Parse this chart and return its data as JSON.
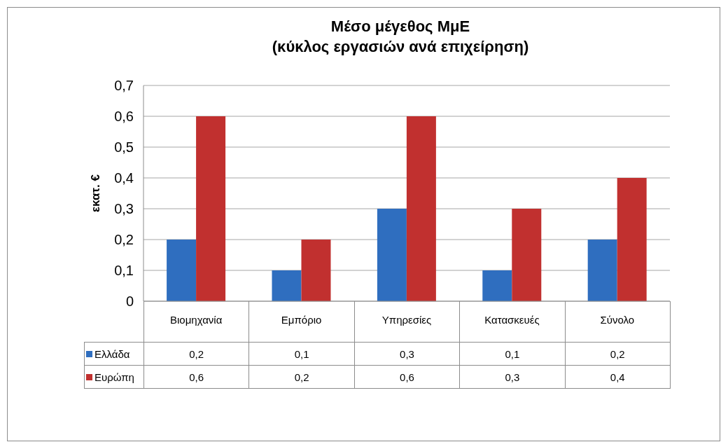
{
  "chart_data": {
    "type": "bar",
    "title": "Μέσο μέγεθος ΜμΕ",
    "subtitle": "(κύκλος εργασιών ανά επιχείρηση)",
    "ylabel": "εκατ. €",
    "categories": [
      "Βιομηχανία",
      "Εμπόριο",
      "Υπηρεσίες",
      "Κατασκευές",
      "Σύνολο"
    ],
    "series": [
      {
        "name": "Ελλάδα",
        "color": "#2f6ebf",
        "values": [
          0.2,
          0.1,
          0.3,
          0.1,
          0.2
        ],
        "value_labels": [
          "0,2",
          "0,1",
          "0,3",
          "0,1",
          "0,2"
        ]
      },
      {
        "name": "Ευρώπη",
        "color": "#c1302f",
        "values": [
          0.6,
          0.2,
          0.6,
          0.3,
          0.4
        ],
        "value_labels": [
          "0,6",
          "0,2",
          "0,6",
          "0,3",
          "0,4"
        ]
      }
    ],
    "ylim": [
      0,
      0.7
    ],
    "yticks": [
      0,
      {
        "value": 0.1,
        "label": "0,1"
      },
      {
        "value": 0.2,
        "label": "0,2"
      },
      {
        "value": 0.3,
        "label": "0,3"
      },
      {
        "value": 0.4,
        "label": "0,4"
      },
      {
        "value": 0.5,
        "label": "0,5"
      },
      {
        "value": 0.6,
        "label": "0,6"
      },
      {
        "value": 0.7,
        "label": "0,7"
      }
    ],
    "grid": "y",
    "legend": "bottom"
  }
}
